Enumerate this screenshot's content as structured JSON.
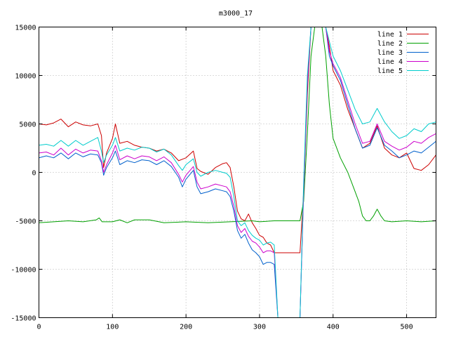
{
  "chart_data": {
    "type": "line",
    "title": "m3000_17",
    "xlabel": "",
    "ylabel": "",
    "xlim": [
      0,
      540
    ],
    "ylim": [
      -15000,
      15000
    ],
    "xticks": [
      0,
      100,
      200,
      300,
      400,
      500
    ],
    "yticks": [
      -15000,
      -10000,
      -5000,
      0,
      5000,
      10000,
      15000
    ],
    "grid": true,
    "legend_position": "top-right",
    "series": [
      {
        "name": "line 1",
        "color": "#cc0000",
        "points": [
          [
            0,
            5000
          ],
          [
            10,
            4900
          ],
          [
            20,
            5100
          ],
          [
            30,
            5500
          ],
          [
            40,
            4700
          ],
          [
            50,
            5200
          ],
          [
            60,
            4900
          ],
          [
            70,
            4800
          ],
          [
            80,
            5000
          ],
          [
            85,
            3800
          ],
          [
            88,
            500
          ],
          [
            92,
            2000
          ],
          [
            100,
            3500
          ],
          [
            104,
            5000
          ],
          [
            110,
            3000
          ],
          [
            120,
            3200
          ],
          [
            130,
            2800
          ],
          [
            140,
            2600
          ],
          [
            150,
            2500
          ],
          [
            160,
            2200
          ],
          [
            170,
            2400
          ],
          [
            180,
            2000
          ],
          [
            190,
            1200
          ],
          [
            200,
            1500
          ],
          [
            210,
            2200
          ],
          [
            215,
            400
          ],
          [
            220,
            100
          ],
          [
            230,
            -200
          ],
          [
            240,
            500
          ],
          [
            250,
            900
          ],
          [
            255,
            1000
          ],
          [
            260,
            500
          ],
          [
            265,
            -1500
          ],
          [
            270,
            -4000
          ],
          [
            275,
            -4800
          ],
          [
            280,
            -5000
          ],
          [
            285,
            -4300
          ],
          [
            290,
            -5200
          ],
          [
            295,
            -5800
          ],
          [
            300,
            -6500
          ],
          [
            305,
            -6700
          ],
          [
            310,
            -7300
          ],
          [
            315,
            -7500
          ],
          [
            320,
            -8300
          ],
          [
            330,
            -8300
          ],
          [
            340,
            -8300
          ],
          [
            350,
            -8300
          ],
          [
            355,
            -8300
          ],
          [
            360,
            -2000
          ],
          [
            365,
            8000
          ],
          [
            370,
            15000
          ],
          [
            380,
            15000
          ],
          [
            390,
            15000
          ],
          [
            395,
            13000
          ],
          [
            400,
            10500
          ],
          [
            410,
            9000
          ],
          [
            420,
            6500
          ],
          [
            430,
            4500
          ],
          [
            440,
            2500
          ],
          [
            450,
            3000
          ],
          [
            460,
            4800
          ],
          [
            470,
            2500
          ],
          [
            480,
            1800
          ],
          [
            490,
            1500
          ],
          [
            500,
            2000
          ],
          [
            510,
            400
          ],
          [
            520,
            200
          ],
          [
            530,
            800
          ],
          [
            540,
            1800
          ]
        ]
      },
      {
        "name": "line 2",
        "color": "#00a000",
        "points": [
          [
            0,
            -5200
          ],
          [
            20,
            -5100
          ],
          [
            40,
            -5000
          ],
          [
            60,
            -5100
          ],
          [
            78,
            -4900
          ],
          [
            82,
            -4700
          ],
          [
            86,
            -5100
          ],
          [
            100,
            -5100
          ],
          [
            110,
            -4900
          ],
          [
            120,
            -5200
          ],
          [
            130,
            -4900
          ],
          [
            150,
            -4900
          ],
          [
            170,
            -5200
          ],
          [
            200,
            -5100
          ],
          [
            230,
            -5200
          ],
          [
            260,
            -5100
          ],
          [
            290,
            -5000
          ],
          [
            300,
            -5100
          ],
          [
            320,
            -5000
          ],
          [
            340,
            -5000
          ],
          [
            355,
            -5000
          ],
          [
            360,
            -3000
          ],
          [
            365,
            4000
          ],
          [
            370,
            12000
          ],
          [
            375,
            15000
          ],
          [
            385,
            15000
          ],
          [
            390,
            12000
          ],
          [
            395,
            7000
          ],
          [
            400,
            3500
          ],
          [
            410,
            1500
          ],
          [
            420,
            0
          ],
          [
            425,
            -1000
          ],
          [
            430,
            -2000
          ],
          [
            435,
            -3000
          ],
          [
            440,
            -4500
          ],
          [
            445,
            -5000
          ],
          [
            450,
            -5000
          ],
          [
            455,
            -4500
          ],
          [
            460,
            -3800
          ],
          [
            465,
            -4500
          ],
          [
            470,
            -5000
          ],
          [
            480,
            -5100
          ],
          [
            500,
            -5000
          ],
          [
            520,
            -5100
          ],
          [
            540,
            -5000
          ]
        ]
      },
      {
        "name": "line 3",
        "color": "#0060cc",
        "points": [
          [
            0,
            1500
          ],
          [
            10,
            1700
          ],
          [
            20,
            1500
          ],
          [
            30,
            2000
          ],
          [
            40,
            1400
          ],
          [
            50,
            2000
          ],
          [
            60,
            1600
          ],
          [
            70,
            1900
          ],
          [
            80,
            1800
          ],
          [
            85,
            1000
          ],
          [
            88,
            -300
          ],
          [
            92,
            500
          ],
          [
            100,
            1500
          ],
          [
            104,
            2200
          ],
          [
            110,
            800
          ],
          [
            120,
            1200
          ],
          [
            130,
            1000
          ],
          [
            140,
            1300
          ],
          [
            150,
            1200
          ],
          [
            160,
            800
          ],
          [
            170,
            1200
          ],
          [
            180,
            600
          ],
          [
            190,
            -500
          ],
          [
            195,
            -1500
          ],
          [
            200,
            -700
          ],
          [
            210,
            200
          ],
          [
            215,
            -1500
          ],
          [
            220,
            -2200
          ],
          [
            230,
            -2000
          ],
          [
            240,
            -1700
          ],
          [
            250,
            -1900
          ],
          [
            255,
            -2000
          ],
          [
            260,
            -2500
          ],
          [
            265,
            -4000
          ],
          [
            270,
            -6000
          ],
          [
            275,
            -6800
          ],
          [
            280,
            -6400
          ],
          [
            285,
            -7300
          ],
          [
            290,
            -8000
          ],
          [
            295,
            -8300
          ],
          [
            300,
            -8700
          ],
          [
            305,
            -9500
          ],
          [
            310,
            -9300
          ],
          [
            315,
            -9300
          ],
          [
            320,
            -9500
          ],
          [
            325,
            -15000
          ],
          [
            355,
            -15000
          ],
          [
            360,
            -2000
          ],
          [
            365,
            9000
          ],
          [
            370,
            15000
          ],
          [
            380,
            15000
          ],
          [
            390,
            15000
          ],
          [
            395,
            12000
          ],
          [
            400,
            11000
          ],
          [
            410,
            9500
          ],
          [
            420,
            7000
          ],
          [
            430,
            4500
          ],
          [
            440,
            2500
          ],
          [
            450,
            2800
          ],
          [
            460,
            4600
          ],
          [
            470,
            2800
          ],
          [
            480,
            2200
          ],
          [
            490,
            1500
          ],
          [
            500,
            1800
          ],
          [
            510,
            2200
          ],
          [
            520,
            2000
          ],
          [
            530,
            2600
          ],
          [
            540,
            3200
          ]
        ]
      },
      {
        "name": "line 4",
        "color": "#cc00cc",
        "points": [
          [
            0,
            2000
          ],
          [
            10,
            2100
          ],
          [
            20,
            1800
          ],
          [
            30,
            2500
          ],
          [
            40,
            1800
          ],
          [
            50,
            2400
          ],
          [
            60,
            2000
          ],
          [
            70,
            2300
          ],
          [
            80,
            2200
          ],
          [
            85,
            1200
          ],
          [
            88,
            0
          ],
          [
            92,
            800
          ],
          [
            100,
            2000
          ],
          [
            104,
            2800
          ],
          [
            110,
            1300
          ],
          [
            120,
            1700
          ],
          [
            130,
            1400
          ],
          [
            140,
            1700
          ],
          [
            150,
            1600
          ],
          [
            160,
            1200
          ],
          [
            170,
            1600
          ],
          [
            180,
            1000
          ],
          [
            190,
            -200
          ],
          [
            195,
            -1000
          ],
          [
            200,
            -300
          ],
          [
            210,
            600
          ],
          [
            215,
            -1000
          ],
          [
            220,
            -1700
          ],
          [
            230,
            -1500
          ],
          [
            240,
            -1200
          ],
          [
            250,
            -1400
          ],
          [
            255,
            -1500
          ],
          [
            260,
            -2000
          ],
          [
            265,
            -3500
          ],
          [
            270,
            -5500
          ],
          [
            275,
            -6200
          ],
          [
            280,
            -5800
          ],
          [
            285,
            -6600
          ],
          [
            290,
            -7100
          ],
          [
            295,
            -7300
          ],
          [
            300,
            -7700
          ],
          [
            305,
            -8300
          ],
          [
            310,
            -8100
          ],
          [
            315,
            -8100
          ],
          [
            320,
            -8300
          ],
          [
            325,
            -15000
          ],
          [
            355,
            -15000
          ],
          [
            360,
            -2000
          ],
          [
            365,
            9000
          ],
          [
            370,
            15000
          ],
          [
            380,
            15000
          ],
          [
            390,
            15000
          ],
          [
            395,
            12500
          ],
          [
            400,
            11200
          ],
          [
            410,
            9800
          ],
          [
            420,
            7400
          ],
          [
            430,
            5000
          ],
          [
            440,
            3000
          ],
          [
            450,
            3200
          ],
          [
            460,
            5000
          ],
          [
            470,
            3200
          ],
          [
            480,
            2700
          ],
          [
            490,
            2300
          ],
          [
            500,
            2600
          ],
          [
            510,
            3200
          ],
          [
            520,
            3000
          ],
          [
            530,
            3600
          ],
          [
            540,
            4000
          ]
        ]
      },
      {
        "name": "line 5",
        "color": "#00cccc",
        "points": [
          [
            0,
            2800
          ],
          [
            10,
            2900
          ],
          [
            20,
            2700
          ],
          [
            30,
            3300
          ],
          [
            40,
            2700
          ],
          [
            50,
            3300
          ],
          [
            60,
            2800
          ],
          [
            70,
            3200
          ],
          [
            80,
            3600
          ],
          [
            85,
            2200
          ],
          [
            88,
            1000
          ],
          [
            92,
            1800
          ],
          [
            100,
            2800
          ],
          [
            104,
            3600
          ],
          [
            110,
            2200
          ],
          [
            120,
            2500
          ],
          [
            130,
            2300
          ],
          [
            140,
            2600
          ],
          [
            150,
            2500
          ],
          [
            160,
            2100
          ],
          [
            170,
            2400
          ],
          [
            180,
            1800
          ],
          [
            190,
            700
          ],
          [
            195,
            200
          ],
          [
            200,
            800
          ],
          [
            210,
            1400
          ],
          [
            215,
            0
          ],
          [
            220,
            -400
          ],
          [
            230,
            0
          ],
          [
            240,
            200
          ],
          [
            250,
            0
          ],
          [
            255,
            -100
          ],
          [
            260,
            -500
          ],
          [
            265,
            -2500
          ],
          [
            270,
            -5000
          ],
          [
            275,
            -5500
          ],
          [
            280,
            -5200
          ],
          [
            285,
            -6000
          ],
          [
            290,
            -6500
          ],
          [
            295,
            -6800
          ],
          [
            300,
            -7000
          ],
          [
            305,
            -7500
          ],
          [
            310,
            -7300
          ],
          [
            315,
            -7200
          ],
          [
            320,
            -7500
          ],
          [
            325,
            -15000
          ],
          [
            355,
            -15000
          ],
          [
            360,
            -1000
          ],
          [
            365,
            10000
          ],
          [
            370,
            15000
          ],
          [
            380,
            15000
          ],
          [
            390,
            15000
          ],
          [
            395,
            13500
          ],
          [
            400,
            12000
          ],
          [
            410,
            10500
          ],
          [
            420,
            8500
          ],
          [
            430,
            6500
          ],
          [
            440,
            5000
          ],
          [
            450,
            5200
          ],
          [
            460,
            6600
          ],
          [
            470,
            5200
          ],
          [
            480,
            4200
          ],
          [
            490,
            3500
          ],
          [
            500,
            3800
          ],
          [
            510,
            4500
          ],
          [
            520,
            4200
          ],
          [
            530,
            5000
          ],
          [
            540,
            5200
          ]
        ]
      }
    ]
  }
}
